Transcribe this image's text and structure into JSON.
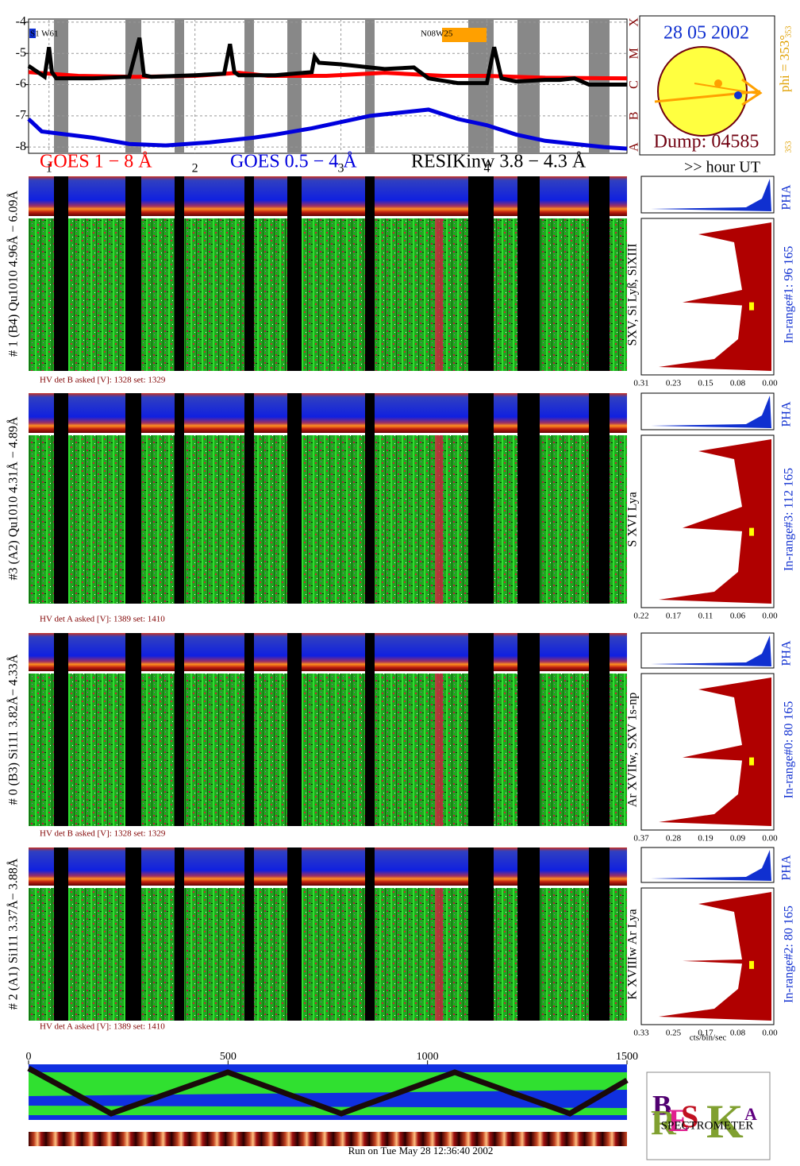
{
  "goes": {
    "xlim": [
      0.86,
      4.96
    ],
    "ylim": [
      -8.2,
      -3.9
    ],
    "yticks": [
      -4,
      -5,
      -6,
      -7,
      -8
    ],
    "xticks": [
      1,
      2,
      3,
      4
    ],
    "class_labels": [
      "A",
      "B",
      "C",
      "M",
      "X"
    ],
    "flare_labels": [
      "S1 W61",
      "N08W25"
    ],
    "series": [
      {
        "name": "GOES 1 − 8 Å",
        "color": "#ff0000",
        "x": [
          0.86,
          1.2,
          1.6,
          2.0,
          2.3,
          2.5,
          2.9,
          3.3,
          3.7,
          4.0,
          4.4,
          4.96
        ],
        "values": [
          -5.6,
          -5.72,
          -5.75,
          -5.72,
          -5.62,
          -5.72,
          -5.72,
          -5.62,
          -5.72,
          -5.72,
          -5.78,
          -5.8
        ]
      },
      {
        "name": "GOES 0.5 − 4 Å",
        "color": "#0000dd",
        "x": [
          0.86,
          0.95,
          1.3,
          1.55,
          1.8,
          2.1,
          2.4,
          2.55,
          2.8,
          3.0,
          3.2,
          3.4,
          3.6,
          3.8,
          4.0,
          4.2,
          4.4,
          4.6,
          4.8,
          4.96
        ],
        "values": [
          -7.1,
          -7.5,
          -7.7,
          -7.9,
          -7.95,
          -7.85,
          -7.7,
          -7.6,
          -7.4,
          -7.2,
          -7.0,
          -6.9,
          -6.8,
          -7.1,
          -7.3,
          -7.6,
          -7.8,
          -7.9,
          -8.0,
          -8.05
        ]
      },
      {
        "name": "RESIKinw 3.8 − 4.3 Å",
        "color": "#000000",
        "x": [
          0.86,
          0.97,
          1.0,
          1.02,
          1.05,
          1.3,
          1.55,
          1.62,
          1.65,
          1.7,
          2.0,
          2.2,
          2.24,
          2.27,
          2.3,
          2.55,
          2.8,
          2.82,
          2.85,
          3.0,
          3.3,
          3.5,
          3.6,
          3.8,
          4.0,
          4.05,
          4.1,
          4.2,
          4.4,
          4.5,
          4.6,
          4.7,
          4.96
        ],
        "values": [
          -5.4,
          -5.75,
          -4.8,
          -5.6,
          -5.8,
          -5.8,
          -5.75,
          -4.5,
          -5.7,
          -5.75,
          -5.7,
          -5.65,
          -4.7,
          -5.6,
          -5.7,
          -5.7,
          -5.6,
          -5.1,
          -5.3,
          -5.35,
          -5.5,
          -5.45,
          -5.8,
          -5.95,
          -5.95,
          -4.8,
          -5.8,
          -5.9,
          -5.85,
          -5.85,
          -5.8,
          -6.0,
          -6.0
        ]
      }
    ]
  },
  "sun": {
    "date": "28 05 2002",
    "dump": "Dump: 04585",
    "phi": "phi = 353°",
    "phi_a": "353",
    "phi_b": "353"
  },
  "time_axis_label": ">> hour UT",
  "detectors": [
    {
      "name": "# 1 (B4) Qu1010 4.96Å − 6.09Å",
      "lines": "SXV, Si Lyß, SiXIII",
      "pha": "PHA",
      "in_range": "In-range#1:  96 165",
      "hv": "HV det B asked [V]:  1328 set:  1329",
      "hist_ticks": [
        "0.31",
        "0.23",
        "0.15",
        "0.08",
        "0.00"
      ]
    },
    {
      "name": "#3 (A2) Qu1010  4.31Å − 4.89Å",
      "lines": "S XVI Lya",
      "pha": "PHA",
      "in_range": "In-range#3:  112 165",
      "hv": "HV det A asked [V]:  1389 set:  1410",
      "hist_ticks": [
        "0.22",
        "0.17",
        "0.11",
        "0.06",
        "0.00"
      ]
    },
    {
      "name": "# 0 (B3) Si111  3.82Å− 4.33Å",
      "lines": "Ar XVIIw,  SXV 1s-np",
      "pha": "PHA",
      "in_range": "In-range#0:  80 165",
      "hv": "HV det B asked [V]:  1328 set:  1329",
      "hist_ticks": [
        "0.37",
        "0.28",
        "0.19",
        "0.09",
        "0.00"
      ]
    },
    {
      "name": "# 2 (A1) Si111  3.37Å− 3.88Å",
      "lines": "K XVIIIw  Ar Lya",
      "pha": "PHA",
      "in_range": "In-range#2:  80 165",
      "hv": "HV det A asked [V]:  1389 set:  1410",
      "hist_ticks": [
        "0.33",
        "0.25",
        "0.17",
        "0.08",
        "0.00"
      ]
    }
  ],
  "hist_xlabel": "cts/bin/sec",
  "position": {
    "xlim": [
      0,
      1500
    ],
    "xticks": [
      0,
      500,
      1000,
      1500
    ]
  },
  "footer": "Run on Tue May 28 12:36:40 2002",
  "logo": {
    "text": "SPECTROMETER"
  }
}
